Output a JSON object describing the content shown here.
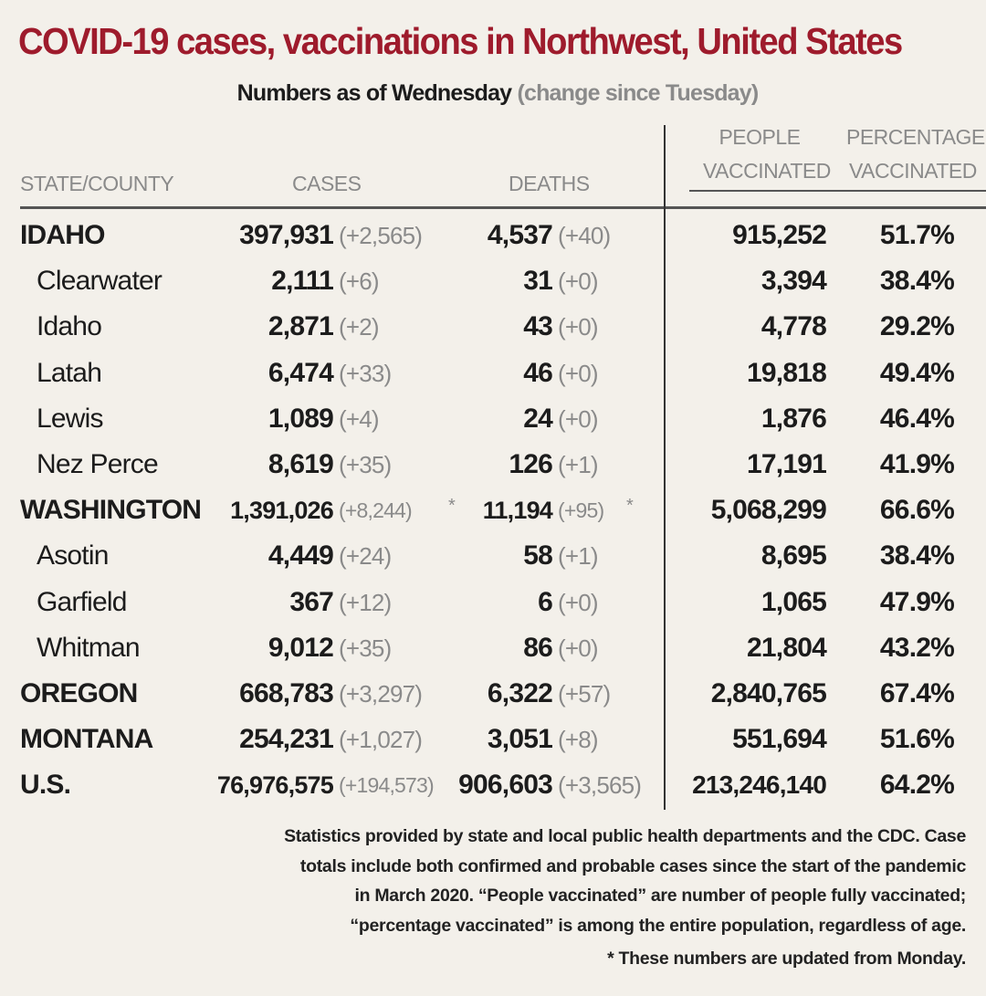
{
  "title": "COVID-19 cases, vaccinations in Northwest, United States",
  "subtitle": {
    "main": "Numbers as of Wednesday",
    "note": "(change since Tuesday)"
  },
  "headers": {
    "state": "STATE/COUNTY",
    "cases": "CASES",
    "deaths": "DEATHS",
    "people_vaccinated": [
      "PEOPLE",
      "VACCINATED"
    ],
    "percentage_vaccinated": [
      "PERCENTAGE",
      "VACCINATED"
    ]
  },
  "colors": {
    "title": "#9e1b2c",
    "change": "#8a8a8a",
    "background": "#f3f0ea"
  },
  "rows": [
    {
      "name": "IDAHO",
      "level": "state",
      "cases": "397,931",
      "cases_change": "(+2,565)",
      "deaths": "4,537",
      "deaths_change": "(+40)",
      "vaccinated": "915,252",
      "percent": "51.7%"
    },
    {
      "name": "Clearwater",
      "level": "county",
      "cases": "2,111",
      "cases_change": "(+6)",
      "deaths": "31",
      "deaths_change": "(+0)",
      "vaccinated": "3,394",
      "percent": "38.4%"
    },
    {
      "name": "Idaho",
      "level": "county",
      "cases": "2,871",
      "cases_change": "(+2)",
      "deaths": "43",
      "deaths_change": "(+0)",
      "vaccinated": "4,778",
      "percent": "29.2%"
    },
    {
      "name": "Latah",
      "level": "county",
      "cases": "6,474",
      "cases_change": "(+33)",
      "deaths": "46",
      "deaths_change": "(+0)",
      "vaccinated": "19,818",
      "percent": "49.4%"
    },
    {
      "name": "Lewis",
      "level": "county",
      "cases": "1,089",
      "cases_change": "(+4)",
      "deaths": "24",
      "deaths_change": "(+0)",
      "vaccinated": "1,876",
      "percent": "46.4%"
    },
    {
      "name": "Nez Perce",
      "level": "county",
      "cases": "8,619",
      "cases_change": "(+35)",
      "deaths": "126",
      "deaths_change": "(+1)",
      "vaccinated": "17,191",
      "percent": "41.9%"
    },
    {
      "name": "WASHINGTON",
      "level": "state",
      "cases": "1,391,026",
      "cases_change": "(+8,244)",
      "cases_mark": "*",
      "deaths": "11,194",
      "deaths_change": "(+95)",
      "deaths_mark": "*",
      "vaccinated": "5,068,299",
      "percent": "66.6%"
    },
    {
      "name": "Asotin",
      "level": "county",
      "cases": "4,449",
      "cases_change": "(+24)",
      "deaths": "58",
      "deaths_change": "(+1)",
      "vaccinated": "8,695",
      "percent": "38.4%"
    },
    {
      "name": "Garfield",
      "level": "county",
      "cases": "367",
      "cases_change": "(+12)",
      "deaths": "6",
      "deaths_change": "(+0)",
      "vaccinated": "1,065",
      "percent": "47.9%"
    },
    {
      "name": "Whitman",
      "level": "county",
      "cases": "9,012",
      "cases_change": "(+35)",
      "deaths": "86",
      "deaths_change": "(+0)",
      "vaccinated": "21,804",
      "percent": "43.2%"
    },
    {
      "name": "OREGON",
      "level": "state",
      "cases": "668,783",
      "cases_change": "(+3,297)",
      "deaths": "6,322",
      "deaths_change": "(+57)",
      "vaccinated": "2,840,765",
      "percent": "67.4%"
    },
    {
      "name": "MONTANA",
      "level": "state",
      "cases": "254,231",
      "cases_change": "(+1,027)",
      "deaths": "3,051",
      "deaths_change": "(+8)",
      "vaccinated": "551,694",
      "percent": "51.6%"
    },
    {
      "name": "U.S.",
      "level": "state",
      "cases": "76,976,575",
      "cases_change": "(+194,573)",
      "deaths": "906,603",
      "deaths_change": "(+3,565)",
      "vaccinated": "213,246,140",
      "percent": "64.2%"
    }
  ],
  "footnote": {
    "lines": [
      "Statistics provided by state and local public health departments and the CDC. Case",
      "totals include both confirmed and probable cases since the start of the pandemic",
      "in March 2020. “People vaccinated” are number of people fully vaccinated;",
      "“percentage vaccinated” is among the entire population, regardless of age."
    ],
    "note": "* These numbers are updated from Monday."
  }
}
